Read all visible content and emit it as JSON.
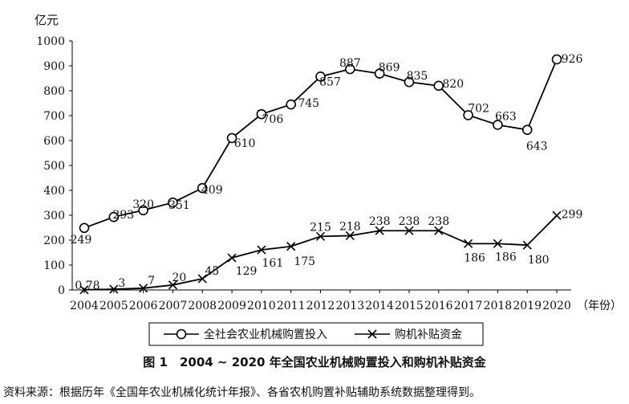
{
  "chart_data": {
    "type": "line",
    "title": "",
    "ylabel": "亿元",
    "xlabel": "（年份）",
    "ylim": [
      0,
      1000
    ],
    "yticks": [
      0,
      100,
      200,
      300,
      400,
      500,
      600,
      700,
      800,
      900,
      1000
    ],
    "categories": [
      "2004",
      "2005",
      "2006",
      "2007",
      "2008",
      "2009",
      "2010",
      "2011",
      "2012",
      "2013",
      "2014",
      "2015",
      "2016",
      "2017",
      "2018",
      "2019",
      "2020"
    ],
    "series": [
      {
        "name": "全社会农业机械购置投入",
        "marker": "circle",
        "values": [
          249,
          293,
          320,
          351,
          409,
          610,
          706,
          745,
          857,
          887,
          869,
          835,
          820,
          702,
          663,
          643,
          926
        ],
        "labels": [
          "249",
          "293",
          "320",
          "351",
          "409",
          "610",
          "706",
          "745",
          "857",
          "887",
          "869",
          "835",
          "820",
          "702",
          "663",
          "643",
          "926"
        ]
      },
      {
        "name": "购机补贴资金",
        "marker": "x",
        "values": [
          0.78,
          3,
          7,
          20,
          45,
          129,
          161,
          175,
          215,
          218,
          238,
          238,
          238,
          186,
          186,
          180,
          299
        ],
        "labels": [
          "0.78",
          "3",
          "7",
          "20",
          "45",
          "129",
          "161",
          "175",
          "215",
          "218",
          "238",
          "238",
          "238",
          "186",
          "186",
          "180",
          "299"
        ]
      }
    ],
    "legend": "bottom"
  },
  "caption": "图 1　2004 ~ 2020 年全国农业机械购置投入和购机补贴资金",
  "source": "资料来源：根据历年《全国年农业机械化统计年报》、各省农机购置补贴辅助系统数据整理得到。"
}
